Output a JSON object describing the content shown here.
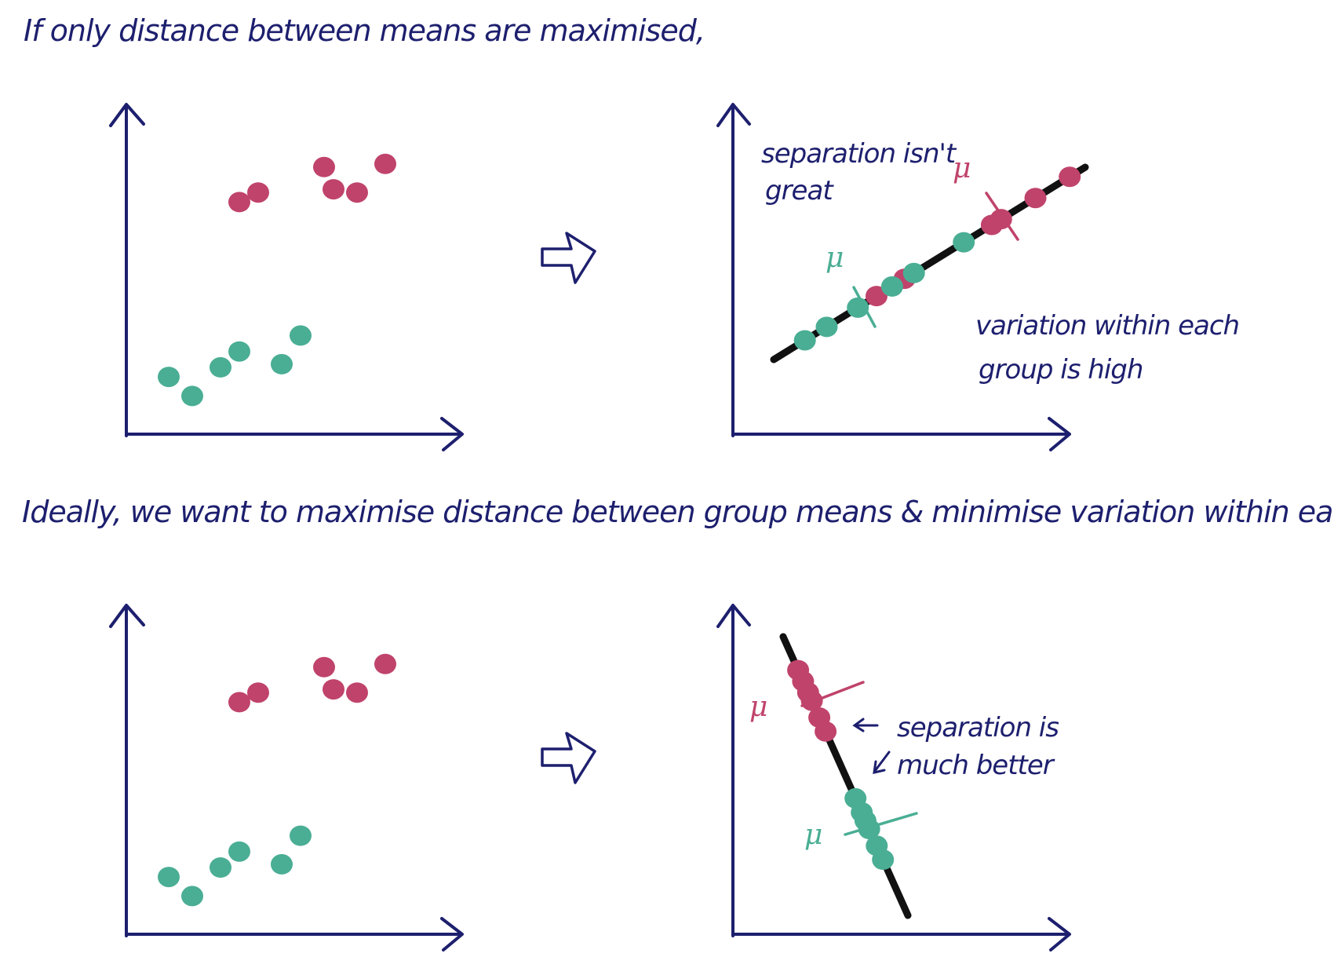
{
  "colors": {
    "ink": "#1d1f6e",
    "group_a": "#c0436b",
    "group_b": "#4aae94",
    "projection_line": "#111111"
  },
  "text": {
    "heading_top": "If only distance between means are maximised,",
    "heading_bottom": "Ideally, we want to maximise distance between group means & minimise variation within each group",
    "note_top_1_line1": "separation isn't",
    "note_top_1_line2": "great",
    "note_top_2_line1": "variation within each",
    "note_top_2_line2": "group is high",
    "note_bottom_line1": "separation is",
    "note_bottom_line2": "much better",
    "mu": "μ"
  },
  "icons": {
    "transform_arrow": "hollow-right-arrow-icon",
    "pointer_left": "left-arrow-icon",
    "pointer_diag": "down-left-arrow-icon"
  },
  "chart_data": [
    {
      "type": "scatter",
      "name": "original-top",
      "series": [
        {
          "group": "a",
          "points": [
            [
              2.4,
              7.3
            ],
            [
              2.8,
              7.6
            ],
            [
              4.2,
              8.4
            ],
            [
              4.4,
              7.7
            ],
            [
              4.9,
              7.6
            ],
            [
              5.5,
              8.5
            ]
          ]
        },
        {
          "group": "b",
          "points": [
            [
              0.9,
              1.8
            ],
            [
              1.4,
              1.2
            ],
            [
              2.0,
              2.1
            ],
            [
              2.4,
              2.6
            ],
            [
              3.3,
              2.2
            ],
            [
              3.7,
              3.1
            ]
          ]
        }
      ]
    },
    {
      "type": "scatter",
      "name": "projection-means-only",
      "projection_axis": "positive-slope",
      "series": [
        {
          "group": "a",
          "positions": [
            0.33,
            0.42,
            0.7,
            0.73,
            0.84,
            0.95
          ]
        },
        {
          "group": "b",
          "positions": [
            0.1,
            0.17,
            0.27,
            0.38,
            0.45,
            0.61
          ]
        }
      ],
      "means": {
        "a": 0.72,
        "b": 0.27
      }
    },
    {
      "type": "scatter",
      "name": "original-bottom",
      "series": [
        {
          "group": "a",
          "points": [
            [
              2.4,
              7.3
            ],
            [
              2.8,
              7.6
            ],
            [
              4.2,
              8.4
            ],
            [
              4.4,
              7.7
            ],
            [
              4.9,
              7.6
            ],
            [
              5.5,
              8.5
            ]
          ]
        },
        {
          "group": "b",
          "points": [
            [
              0.9,
              1.8
            ],
            [
              1.4,
              1.2
            ],
            [
              2.0,
              2.1
            ],
            [
              2.4,
              2.6
            ],
            [
              3.3,
              2.2
            ],
            [
              3.7,
              3.1
            ]
          ]
        }
      ]
    },
    {
      "type": "scatter",
      "name": "projection-fisher",
      "projection_axis": "negative-slope",
      "series": [
        {
          "group": "a",
          "positions": [
            0.12,
            0.16,
            0.2,
            0.23,
            0.29,
            0.34
          ]
        },
        {
          "group": "b",
          "positions": [
            0.58,
            0.63,
            0.66,
            0.69,
            0.75,
            0.8
          ]
        }
      ],
      "means": {
        "a": 0.22,
        "b": 0.68
      }
    }
  ]
}
